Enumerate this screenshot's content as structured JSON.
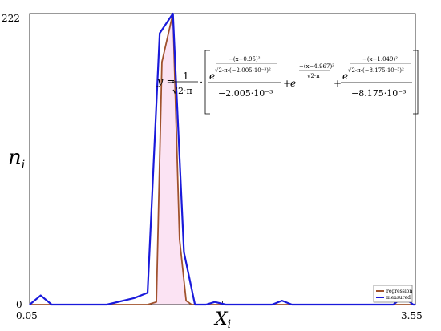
{
  "chart_data": {
    "type": "line",
    "xlabel": "X",
    "xlabel_sub": "i",
    "ylabel": "n",
    "ylabel_sub": "i",
    "xlim": [
      0.05,
      3.55
    ],
    "ylim": [
      0,
      222
    ],
    "x_tick_labels": [
      "0.05",
      "3.55"
    ],
    "y_tick_labels": [
      "0",
      "222"
    ],
    "grid": false,
    "legend_position": "bottom-right",
    "series": [
      {
        "name": "regression",
        "color": "#a0522d",
        "x": [
          0.05,
          1.12,
          1.2,
          1.25,
          1.35,
          1.41,
          1.47,
          1.52,
          3.55
        ],
        "y": [
          0,
          0,
          2,
          185,
          222,
          50,
          3,
          0,
          0
        ]
      },
      {
        "name": "measured",
        "color": "#1a1adb",
        "x": [
          0.05,
          0.15,
          0.25,
          0.75,
          1.0,
          1.12,
          1.23,
          1.35,
          1.45,
          1.55,
          1.65,
          1.73,
          1.83,
          2.25,
          2.34,
          2.43,
          3.35,
          3.44,
          3.53,
          3.55
        ],
        "y": [
          0,
          7,
          0,
          0,
          5,
          9,
          207,
          222,
          40,
          0,
          0,
          2,
          0,
          0,
          3,
          0,
          0,
          6,
          0,
          0
        ]
      }
    ],
    "annotation": {
      "lhs": "y = ",
      "frac_num": "1",
      "frac_den": "√2·π",
      "dot": "·",
      "t1_exp": "−(x−0.95)²",
      "t1_exp_den": "√2·π·(−2.005·10⁻³)²",
      "t1_den": "−2.005·10⁻³",
      "plus": "+",
      "t2_exp": "−(x−4.967)²",
      "t2_exp_den": "√2·π",
      "t3_exp": "−(x−1.049)²",
      "t3_exp_den": "√2·π·(−8.175·10⁻³)²",
      "t3_den": "−8.175·10⁻³",
      "e": "e"
    }
  }
}
